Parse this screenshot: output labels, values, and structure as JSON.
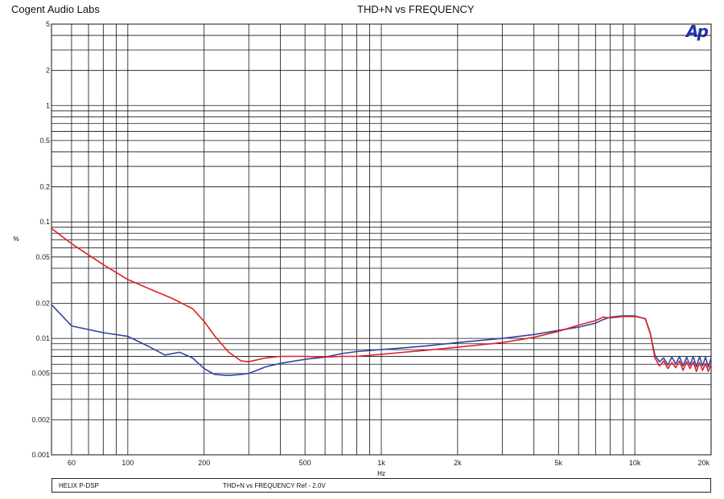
{
  "header": {
    "brand": "Cogent Audio Labs",
    "title": "THD+N vs FREQUENCY",
    "logo_text": "Ap"
  },
  "footer": {
    "name": "HELIX P-DSP",
    "desc": "THD+N vs FREQUENCY     Ref - 2.0V"
  },
  "colors": {
    "blue": "#3344a0",
    "red": "#dd2222",
    "grid": "#111111"
  },
  "chart_data": {
    "type": "line",
    "title": "THD+N vs FREQUENCY",
    "xlabel": "Hz",
    "ylabel": "%",
    "xscale": "log",
    "yscale": "log",
    "xlim": [
      50,
      20000
    ],
    "ylim": [
      0.001,
      5
    ],
    "grid": true,
    "x_ticks": [
      {
        "v": 60,
        "l": "60"
      },
      {
        "v": 100,
        "l": "100"
      },
      {
        "v": 200,
        "l": "200"
      },
      {
        "v": 500,
        "l": "500"
      },
      {
        "v": 1000,
        "l": "1k"
      },
      {
        "v": 2000,
        "l": "2k"
      },
      {
        "v": 5000,
        "l": "5k"
      },
      {
        "v": 10000,
        "l": "10k"
      },
      {
        "v": 20000,
        "l": "20k"
      }
    ],
    "y_ticks": [
      {
        "v": 5,
        "l": "5"
      },
      {
        "v": 2,
        "l": "2"
      },
      {
        "v": 1,
        "l": "1"
      },
      {
        "v": 0.5,
        "l": "0.5"
      },
      {
        "v": 0.2,
        "l": "0.2"
      },
      {
        "v": 0.1,
        "l": "0.1"
      },
      {
        "v": 0.05,
        "l": "0.05"
      },
      {
        "v": 0.02,
        "l": "0.02"
      },
      {
        "v": 0.01,
        "l": "0.01"
      },
      {
        "v": 0.005,
        "l": "0.005"
      },
      {
        "v": 0.002,
        "l": "0.002"
      },
      {
        "v": 0.001,
        "l": "0.001"
      }
    ],
    "series": [
      {
        "color": "#3344a0",
        "x": [
          50,
          60,
          80,
          100,
          120,
          140,
          160,
          180,
          200,
          220,
          250,
          280,
          300,
          350,
          400,
          500,
          600,
          700,
          800,
          1000,
          1500,
          2000,
          3000,
          4000,
          5000,
          6000,
          7000,
          7500,
          8000,
          9000,
          10000,
          11000,
          11500,
          12000,
          12500,
          13000,
          13500,
          14000,
          14500,
          15000,
          15500,
          16000,
          16500,
          17000,
          17500,
          18000,
          18500,
          19000,
          19500,
          20000
        ],
        "y": [
          0.0195,
          0.0128,
          0.0112,
          0.0104,
          0.0086,
          0.0072,
          0.0076,
          0.0068,
          0.0055,
          0.0049,
          0.0048,
          0.0049,
          0.005,
          0.0057,
          0.0061,
          0.0066,
          0.0069,
          0.0074,
          0.0077,
          0.008,
          0.0086,
          0.0092,
          0.01,
          0.0108,
          0.0117,
          0.0125,
          0.0135,
          0.0145,
          0.0152,
          0.0156,
          0.0156,
          0.0147,
          0.011,
          0.0072,
          0.0063,
          0.0068,
          0.0059,
          0.0069,
          0.006,
          0.007,
          0.0058,
          0.0069,
          0.0059,
          0.007,
          0.0057,
          0.007,
          0.0058,
          0.0069,
          0.0057,
          0.0068
        ]
      },
      {
        "color": "#dd2222",
        "x": [
          50,
          60,
          80,
          100,
          120,
          150,
          180,
          200,
          220,
          250,
          280,
          300,
          350,
          400,
          500,
          600,
          700,
          800,
          1000,
          1500,
          2000,
          3000,
          4000,
          5000,
          6000,
          7000,
          7500,
          8000,
          9000,
          10000,
          11000,
          11500,
          12000,
          12500,
          13000,
          13500,
          14000,
          14500,
          15000,
          15500,
          16000,
          16500,
          17000,
          17500,
          18000,
          18500,
          19000,
          19500,
          20000
        ],
        "y": [
          0.088,
          0.065,
          0.043,
          0.032,
          0.027,
          0.022,
          0.018,
          0.014,
          0.0105,
          0.0076,
          0.0064,
          0.0063,
          0.0068,
          0.007,
          0.007,
          0.0069,
          0.007,
          0.007,
          0.0073,
          0.0079,
          0.0084,
          0.0092,
          0.0102,
          0.0115,
          0.013,
          0.0142,
          0.0152,
          0.015,
          0.0154,
          0.0154,
          0.0148,
          0.0112,
          0.0068,
          0.0058,
          0.0064,
          0.0055,
          0.0062,
          0.0056,
          0.0064,
          0.0053,
          0.0063,
          0.0055,
          0.0063,
          0.0052,
          0.0062,
          0.0053,
          0.0061,
          0.0052,
          0.006
        ]
      }
    ]
  }
}
